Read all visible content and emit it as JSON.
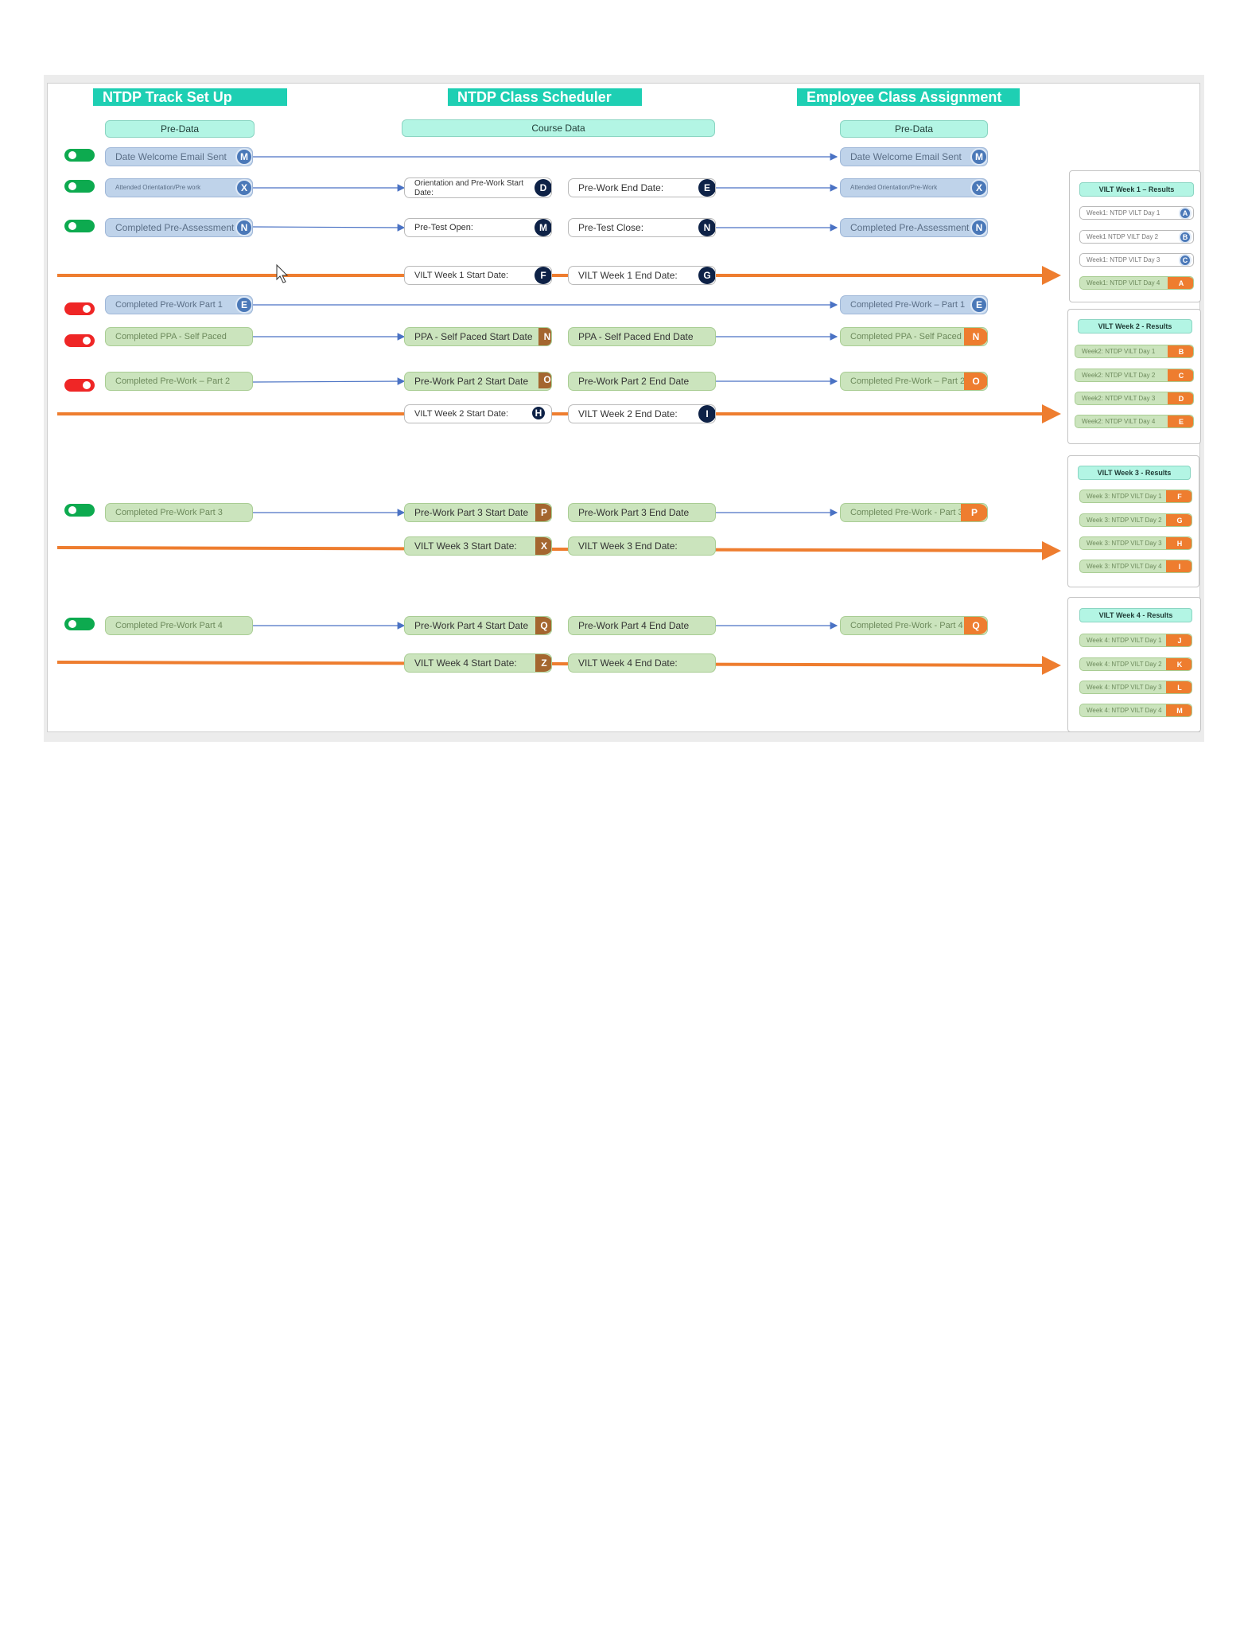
{
  "colors": {
    "header": "#1ecfb3",
    "subheader": "#b3f5e4",
    "blue_pill": "#bfd3ea",
    "green_pill": "#cbe4bd",
    "orange_line": "#ee7d2f",
    "blue_line": "#4a72c4",
    "toggle_on": "#0daa4f",
    "toggle_off": "#ef2626"
  },
  "headers": {
    "track": "NTDP Track Set Up",
    "scheduler": "NTDP Class Scheduler",
    "assignment": "Employee Class Assignment"
  },
  "subheaders": {
    "left": "Pre-Data",
    "center": "Course Data",
    "right": "Pre-Data"
  },
  "rows": {
    "r1": {
      "left": "Date Welcome Email Sent",
      "left_badge": "M",
      "right": "Date Welcome Email Sent",
      "right_badge": "M"
    },
    "r2": {
      "left": "Attended Orientation/Pre work",
      "left_badge": "X",
      "c1": "Orientation and Pre-Work Start Date:",
      "c1_badge": "D",
      "c2": "Pre-Work End Date:",
      "c2_badge": "E",
      "right": "Attended Orientation/Pre-Work",
      "right_badge": "X"
    },
    "r3": {
      "left": "Completed Pre-Assessment",
      "left_badge": "N",
      "c1": "Pre-Test Open:",
      "c1_badge": "M",
      "c2": "Pre-Test Close:",
      "c2_badge": "N",
      "right": "Completed Pre-Assessment",
      "right_badge": "N"
    },
    "r4": {
      "c1": "VILT Week 1 Start Date:",
      "c1_badge": "F",
      "c2": "VILT Week 1 End Date:",
      "c2_badge": "G"
    },
    "r5": {
      "left": "Completed Pre-Work Part 1",
      "left_badge": "E",
      "right": "Completed Pre-Work – Part 1",
      "right_badge": "E"
    },
    "r6": {
      "left": "Completed PPA - Self Paced",
      "c1": "PPA - Self Paced Start Date",
      "c1_badge": "N",
      "c2": "PPA -  Self Paced End Date",
      "right": "Completed PPA - Self Paced",
      "right_badge": "N"
    },
    "r7": {
      "left": "Completed Pre-Work – Part 2",
      "c1": "Pre-Work Part 2 Start Date",
      "c1_badge": "O",
      "c2": "Pre-Work Part 2 End Date",
      "right": "Completed Pre-Work – Part 2",
      "right_badge": "O"
    },
    "r8": {
      "c1": "VILT Week 2 Start Date:",
      "c1_badge": "H",
      "c2": "VILT Week 2 End Date:",
      "c2_badge": "I"
    },
    "r9": {
      "left": "Completed Pre-Work Part 3",
      "c1": "Pre-Work Part 3 Start Date",
      "c1_badge": "P",
      "c2": "Pre-Work Part 3 End Date",
      "right": "Completed Pre-Work - Part 3",
      "right_badge": "P"
    },
    "r10": {
      "c1": "VILT Week 3 Start Date:",
      "c1_badge": "X",
      "c2": "VILT Week 3 End Date:"
    },
    "r11": {
      "left": "Completed Pre-Work Part 4",
      "c1": "Pre-Work Part 4 Start Date",
      "c1_badge": "Q",
      "c2": "Pre-Work Part 4 End Date",
      "right": "Completed Pre-Work - Part 4",
      "right_badge": "Q"
    },
    "r12": {
      "c1": "VILT Week 4 Start Date:",
      "c1_badge": "Z",
      "c2": "VILT Week 4 End Date:"
    }
  },
  "toggles": [
    "on",
    "on",
    "on",
    "off",
    "off",
    "off",
    "on",
    "on"
  ],
  "results": {
    "w1": {
      "title": "VILT Week 1 – Results",
      "items": [
        {
          "label": "Week1: NTDP VILT Day 1",
          "badge": "A"
        },
        {
          "label": "Week1 NTDP VILT Day 2",
          "badge": "B"
        },
        {
          "label": "Week1: NTDP VILT Day 3",
          "badge": "C"
        },
        {
          "label": "Week1: NTDP VILT Day 4",
          "badge": "A"
        }
      ]
    },
    "w2": {
      "title": "VILT Week 2 - Results",
      "items": [
        {
          "label": "Week2: NTDP VILT Day 1",
          "badge": "B"
        },
        {
          "label": "Week2: NTDP VILT Day 2",
          "badge": "C"
        },
        {
          "label": "Week2: NTDP VILT Day 3",
          "badge": "D"
        },
        {
          "label": "Week2: NTDP VILT Day 4",
          "badge": "E"
        }
      ]
    },
    "w3": {
      "title": "VILT Week 3 - Results",
      "items": [
        {
          "label": "Week 3: NTDP VILT Day 1",
          "badge": "F"
        },
        {
          "label": "Week 3: NTDP VILT Day 2",
          "badge": "G"
        },
        {
          "label": "Week 3: NTDP VILT Day 3",
          "badge": "H"
        },
        {
          "label": "Week 3: NTDP VILT Day 4",
          "badge": "I"
        }
      ]
    },
    "w4": {
      "title": "VILT Week 4 - Results",
      "items": [
        {
          "label": "Week 4: NTDP VILT Day 1",
          "badge": "J"
        },
        {
          "label": "Week 4: NTDP VILT Day 2",
          "badge": "K"
        },
        {
          "label": "Week 4: NTDP VILT Day 3",
          "badge": "L"
        },
        {
          "label": "Week 4: NTDP VILT Day 4",
          "badge": "M"
        }
      ]
    }
  }
}
